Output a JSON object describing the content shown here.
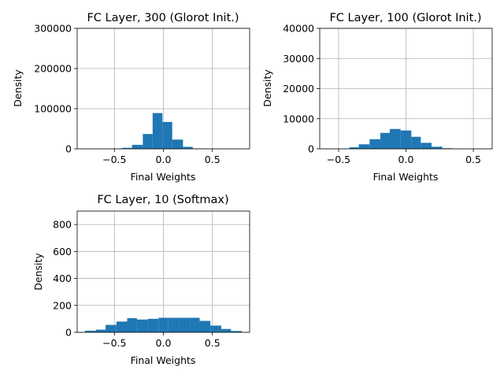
{
  "chart_data": [
    {
      "type": "bar",
      "title": "FC Layer, 300 (Glorot Init.)",
      "xlabel": "Final Weights",
      "ylabel": "Density",
      "xlim": [
        -0.88,
        0.88
      ],
      "ylim": [
        0,
        300000
      ],
      "xticks": [
        -0.5,
        0.0,
        0.5
      ],
      "xtick_labels": [
        "−0.5",
        "0.0",
        "0.5"
      ],
      "yticks": [
        0,
        100000,
        200000,
        300000
      ],
      "ytick_labels": [
        "0",
        "100000",
        "200000",
        "300000"
      ],
      "grid": true,
      "color": "#1f77b4",
      "bin_edges": [
        -0.72,
        -0.62,
        -0.52,
        -0.42,
        -0.32,
        -0.21,
        -0.11,
        -0.01,
        0.09,
        0.2,
        0.3,
        0.4,
        0.5,
        0.6,
        0.7
      ],
      "values": [
        0,
        300,
        700,
        2500,
        10000,
        37000,
        89000,
        67000,
        23000,
        5000,
        1000,
        300,
        100,
        0
      ]
    },
    {
      "type": "bar",
      "title": "FC Layer, 100 (Glorot Init.)",
      "xlabel": "Final Weights",
      "ylabel": "Density",
      "xlim": [
        -0.64,
        0.64
      ],
      "ylim": [
        0,
        40000
      ],
      "xticks": [
        -0.5,
        0.0,
        0.5
      ],
      "xtick_labels": [
        "−0.5",
        "0.0",
        "0.5"
      ],
      "yticks": [
        0,
        10000,
        20000,
        30000,
        40000
      ],
      "ytick_labels": [
        "0",
        "10000",
        "20000",
        "30000",
        "40000"
      ],
      "grid": true,
      "color": "#1f77b4",
      "bin_edges": [
        -0.5,
        -0.42,
        -0.35,
        -0.27,
        -0.19,
        -0.12,
        -0.04,
        0.04,
        0.11,
        0.19,
        0.27,
        0.34,
        0.42,
        0.5
      ],
      "values": [
        100,
        500,
        1500,
        3200,
        5300,
        6600,
        6100,
        4000,
        2000,
        700,
        200,
        50,
        0
      ]
    },
    {
      "type": "bar",
      "title": "FC Layer, 10 (Softmax)",
      "xlabel": "Final Weights",
      "ylabel": "Density",
      "xlim": [
        -0.88,
        0.88
      ],
      "ylim": [
        0,
        900
      ],
      "xticks": [
        -0.5,
        0.0,
        0.5
      ],
      "xtick_labels": [
        "−0.5",
        "0.0",
        "0.5"
      ],
      "yticks": [
        0,
        200,
        400,
        600,
        800
      ],
      "ytick_labels": [
        "0",
        "200",
        "400",
        "600",
        "800"
      ],
      "grid": true,
      "color": "#1f77b4",
      "bin_edges": [
        -0.8,
        -0.69,
        -0.59,
        -0.48,
        -0.37,
        -0.27,
        -0.16,
        -0.05,
        0.05,
        0.16,
        0.27,
        0.37,
        0.48,
        0.59,
        0.69,
        0.8
      ],
      "values": [
        12,
        20,
        55,
        80,
        105,
        95,
        100,
        108,
        108,
        108,
        108,
        85,
        50,
        25,
        10
      ]
    }
  ]
}
